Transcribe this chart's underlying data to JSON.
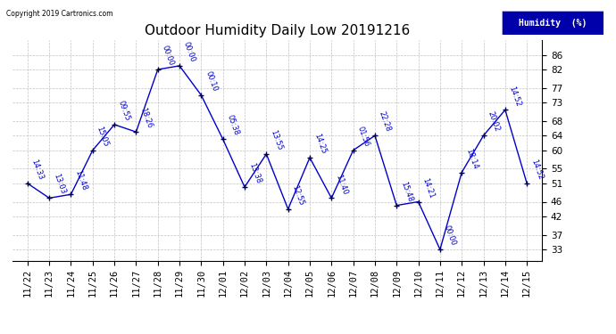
{
  "title": "Outdoor Humidity Daily Low 20191216",
  "copyright": "Copyright 2019 Cartronics.com",
  "legend_label": "Humidity  (%)",
  "x_labels": [
    "11/22",
    "11/23",
    "11/24",
    "11/25",
    "11/26",
    "11/27",
    "11/28",
    "11/29",
    "11/30",
    "12/01",
    "12/02",
    "12/03",
    "12/04",
    "12/05",
    "12/06",
    "12/07",
    "12/08",
    "12/09",
    "12/10",
    "12/11",
    "12/12",
    "12/13",
    "12/14",
    "12/15"
  ],
  "y_values": [
    51,
    47,
    48,
    60,
    67,
    65,
    82,
    83,
    75,
    63,
    50,
    59,
    44,
    58,
    47,
    60,
    64,
    45,
    46,
    33,
    54,
    64,
    71,
    51
  ],
  "time_labels": [
    "14:33",
    "13:03",
    "11:48",
    "15:05",
    "09:55",
    "18:26",
    "00:00",
    "00:00",
    "00:10",
    "05:38",
    "13:38",
    "13:55",
    "12:55",
    "14:25",
    "11:40",
    "01:56",
    "22:28",
    "15:48",
    "14:21",
    "00:00",
    "18:14",
    "20:02",
    "14:52",
    "14:52"
  ],
  "line_color": "#0000cc",
  "marker_color": "#000044",
  "background_color": "#ffffff",
  "grid_color": "#bbbbbb",
  "ylim": [
    30,
    90
  ],
  "yticks": [
    33,
    37,
    42,
    46,
    51,
    55,
    60,
    64,
    68,
    73,
    77,
    82,
    86
  ],
  "title_fontsize": 11,
  "label_fontsize": 6.0,
  "tick_fontsize": 7.5
}
